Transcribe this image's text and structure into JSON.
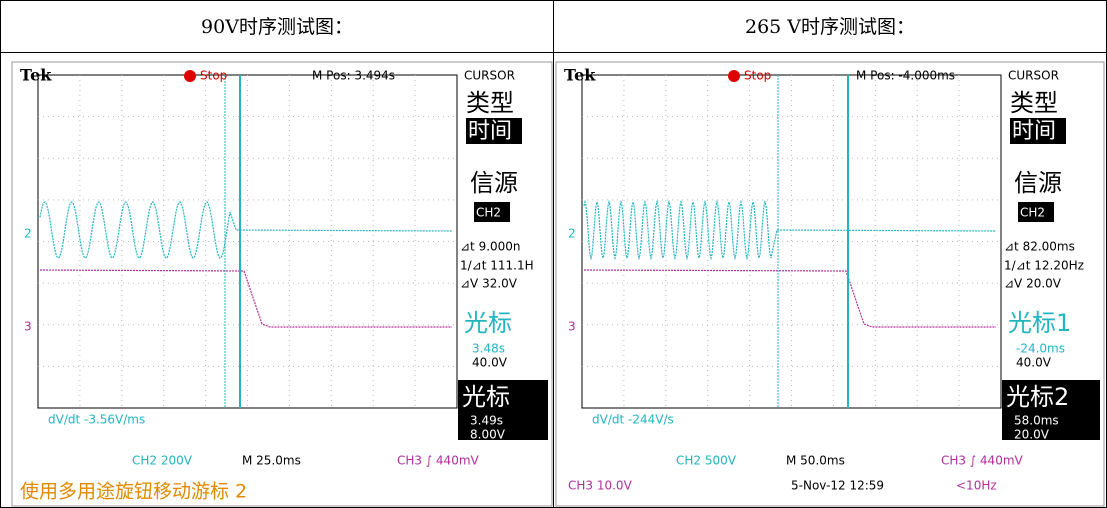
{
  "header": {
    "cells": [
      "90V时序测试图：",
      "265 V时序测试图："
    ]
  },
  "scopes": [
    {
      "brand": "Tek",
      "status": "Stop",
      "mpos": "M Pos: 3.494s",
      "menu": "CURSOR",
      "type_label": "类型",
      "type_value": "时间",
      "source_label": "信源",
      "source_value": "CH2",
      "delta_t": "⊿t 9.000n",
      "inv_delta_t": "1/⊿t 111.1H",
      "delta_v": "⊿V 32.0V",
      "cursor1_label": "光标",
      "cursor1_time": "3.48s",
      "cursor1_volt": "40.0V",
      "cursor2_label": "光标",
      "cursor2_time": "3.49s",
      "cursor2_volt": "8.00V",
      "dvdt": "dV/dt -3.56V/ms",
      "ch2_marker": "2",
      "ch3_marker": "3",
      "ch2_scale": "CH2  200V",
      "timebase": "M 25.0ms",
      "trigger": "CH3 ∫ 440mV",
      "footer": [
        "使用多用途旋钮移动游标 2"
      ]
    },
    {
      "brand": "Tek",
      "status": "Stop",
      "mpos": "M Pos: -4.000ms",
      "menu": "CURSOR",
      "type_label": "类型",
      "type_value": "时间",
      "source_label": "信源",
      "source_value": "CH2",
      "delta_t": "⊿t 82.00ms",
      "inv_delta_t": "1/⊿t 12.20Hz",
      "delta_v": "⊿V 20.0V",
      "cursor1_label": "光标1",
      "cursor1_time": "-24.0ms",
      "cursor1_volt": "40.0V",
      "cursor2_label": "光标2",
      "cursor2_time": "58.0ms",
      "cursor2_volt": "20.0V",
      "dvdt": "dV/dt -244V/s",
      "ch2_marker": "2",
      "ch3_marker": "3",
      "ch2_scale": "CH2  500V",
      "timebase": "M 50.0ms",
      "trigger": "CH3 ∫ 440mV",
      "footer": [
        "CH3  10.0V",
        "5-Nov-12 12:59",
        "<10Hz"
      ]
    }
  ]
}
